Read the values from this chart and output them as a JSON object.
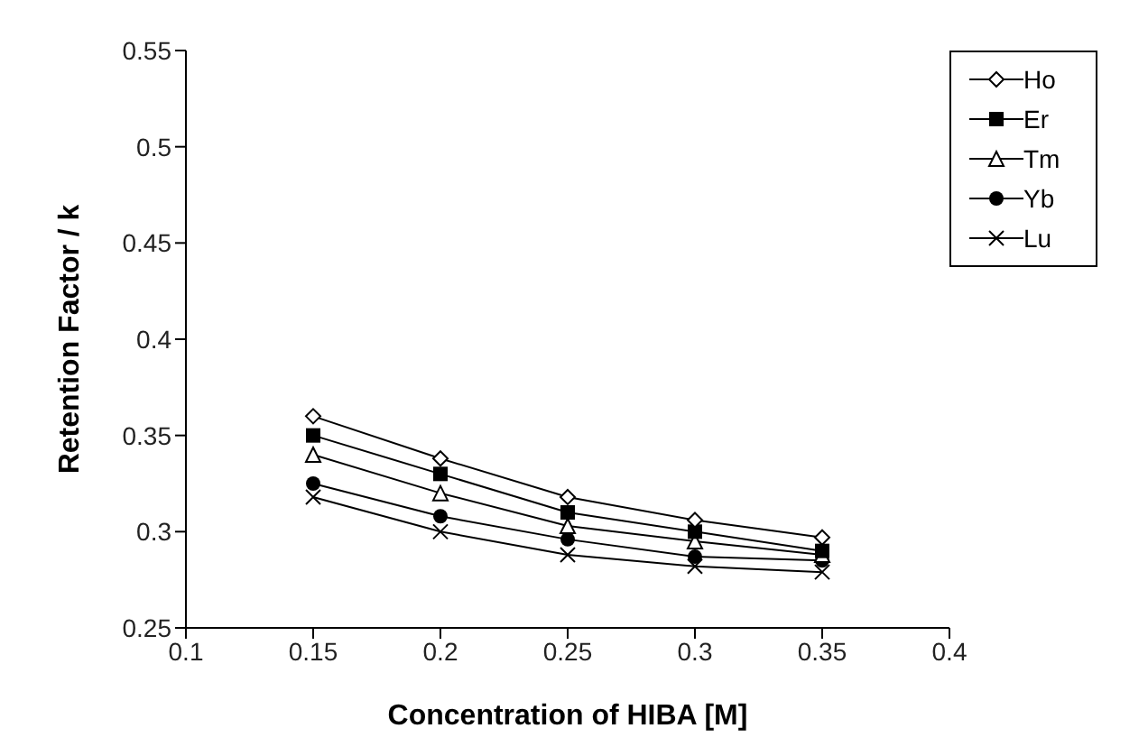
{
  "chart_data": {
    "type": "line",
    "xlabel": "Concentration of HIBA [M]",
    "ylabel": "Retention Factor / k",
    "x": [
      0.15,
      0.2,
      0.25,
      0.3,
      0.35
    ],
    "xlim": [
      0.1,
      0.4
    ],
    "xticks": [
      {
        "value": 0.1,
        "label": "0.1"
      },
      {
        "value": 0.15,
        "label": "0.15"
      },
      {
        "value": 0.2,
        "label": "0.2"
      },
      {
        "value": 0.25,
        "label": "0.25"
      },
      {
        "value": 0.3,
        "label": "0.3"
      },
      {
        "value": 0.35,
        "label": "0.35"
      },
      {
        "value": 0.4,
        "label": "0.4"
      }
    ],
    "ylim": [
      0.25,
      0.55
    ],
    "yticks": [
      {
        "value": 0.25,
        "label": "0.25"
      },
      {
        "value": 0.3,
        "label": "0.3"
      },
      {
        "value": 0.35,
        "label": "0.35"
      },
      {
        "value": 0.4,
        "label": "0.4"
      },
      {
        "value": 0.45,
        "label": "0.45"
      },
      {
        "value": 0.5,
        "label": "0.5"
      },
      {
        "value": 0.55,
        "label": "0.55"
      }
    ],
    "grid": false,
    "legend": "top right",
    "series": [
      {
        "name": "Ho",
        "color": "#000000",
        "marker": "diamond",
        "values": [
          0.36,
          0.338,
          0.318,
          0.306,
          0.297
        ]
      },
      {
        "name": "Er",
        "color": "#000000",
        "marker": "square",
        "values": [
          0.35,
          0.33,
          0.31,
          0.3,
          0.29
        ]
      },
      {
        "name": "Tm",
        "color": "#000000",
        "marker": "triangle",
        "values": [
          0.34,
          0.32,
          0.303,
          0.295,
          0.288
        ]
      },
      {
        "name": "Yb",
        "color": "#000000",
        "marker": "circle",
        "values": [
          0.325,
          0.308,
          0.296,
          0.287,
          0.285
        ]
      },
      {
        "name": "Lu",
        "color": "#000000",
        "marker": "cross",
        "values": [
          0.318,
          0.3,
          0.288,
          0.282,
          0.279
        ]
      }
    ]
  }
}
